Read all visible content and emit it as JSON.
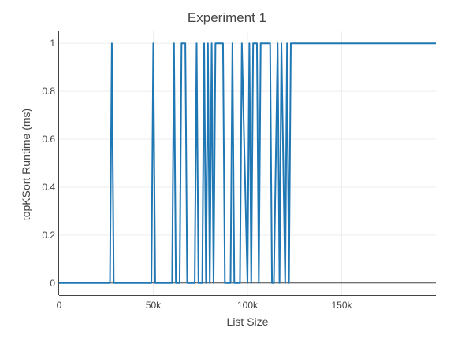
{
  "chart_data": {
    "type": "line",
    "title": "Experiment 1",
    "xlabel": "List Size",
    "ylabel": "topKSort Runtime (ms)",
    "xlim": [
      0,
      200000
    ],
    "ylim": [
      -0.05,
      1.05
    ],
    "x_ticks": [
      0,
      50000,
      100000,
      150000
    ],
    "x_tick_labels": [
      "0",
      "50k",
      "100k",
      "150k"
    ],
    "y_ticks": [
      0,
      0.2,
      0.4,
      0.6,
      0.8,
      1
    ],
    "y_tick_labels": [
      "0",
      "0.2",
      "0.4",
      "0.6",
      "0.8",
      "1"
    ],
    "grid": true,
    "legend": "none",
    "series": [
      {
        "color": "#1f77b4",
        "x": [
          0,
          27000,
          28000,
          29000,
          49000,
          50000,
          51000,
          60000,
          61000,
          62000,
          64000,
          65000,
          67000,
          68000,
          72000,
          73000,
          74000,
          76000,
          77000,
          78000,
          79000,
          80000,
          81000,
          82000,
          83000,
          87000,
          88000,
          91000,
          92000,
          93000,
          96000,
          97000,
          100000,
          101000,
          102000,
          103000,
          105000,
          106000,
          107000,
          108000,
          112000,
          113000,
          114000,
          116000,
          117000,
          118000,
          120000,
          121000,
          122000,
          123000,
          200000
        ],
        "y": [
          0,
          0,
          1,
          0,
          0,
          1,
          0,
          0,
          1,
          0,
          0,
          1,
          1,
          0,
          0,
          1,
          0,
          0,
          1,
          0,
          1,
          0,
          1,
          0,
          1,
          1,
          0,
          0,
          1,
          0,
          0,
          1,
          0,
          1,
          0,
          1,
          1,
          0,
          1,
          1,
          1,
          0,
          0,
          1,
          0,
          1,
          0,
          1,
          0,
          1,
          1
        ]
      }
    ]
  }
}
